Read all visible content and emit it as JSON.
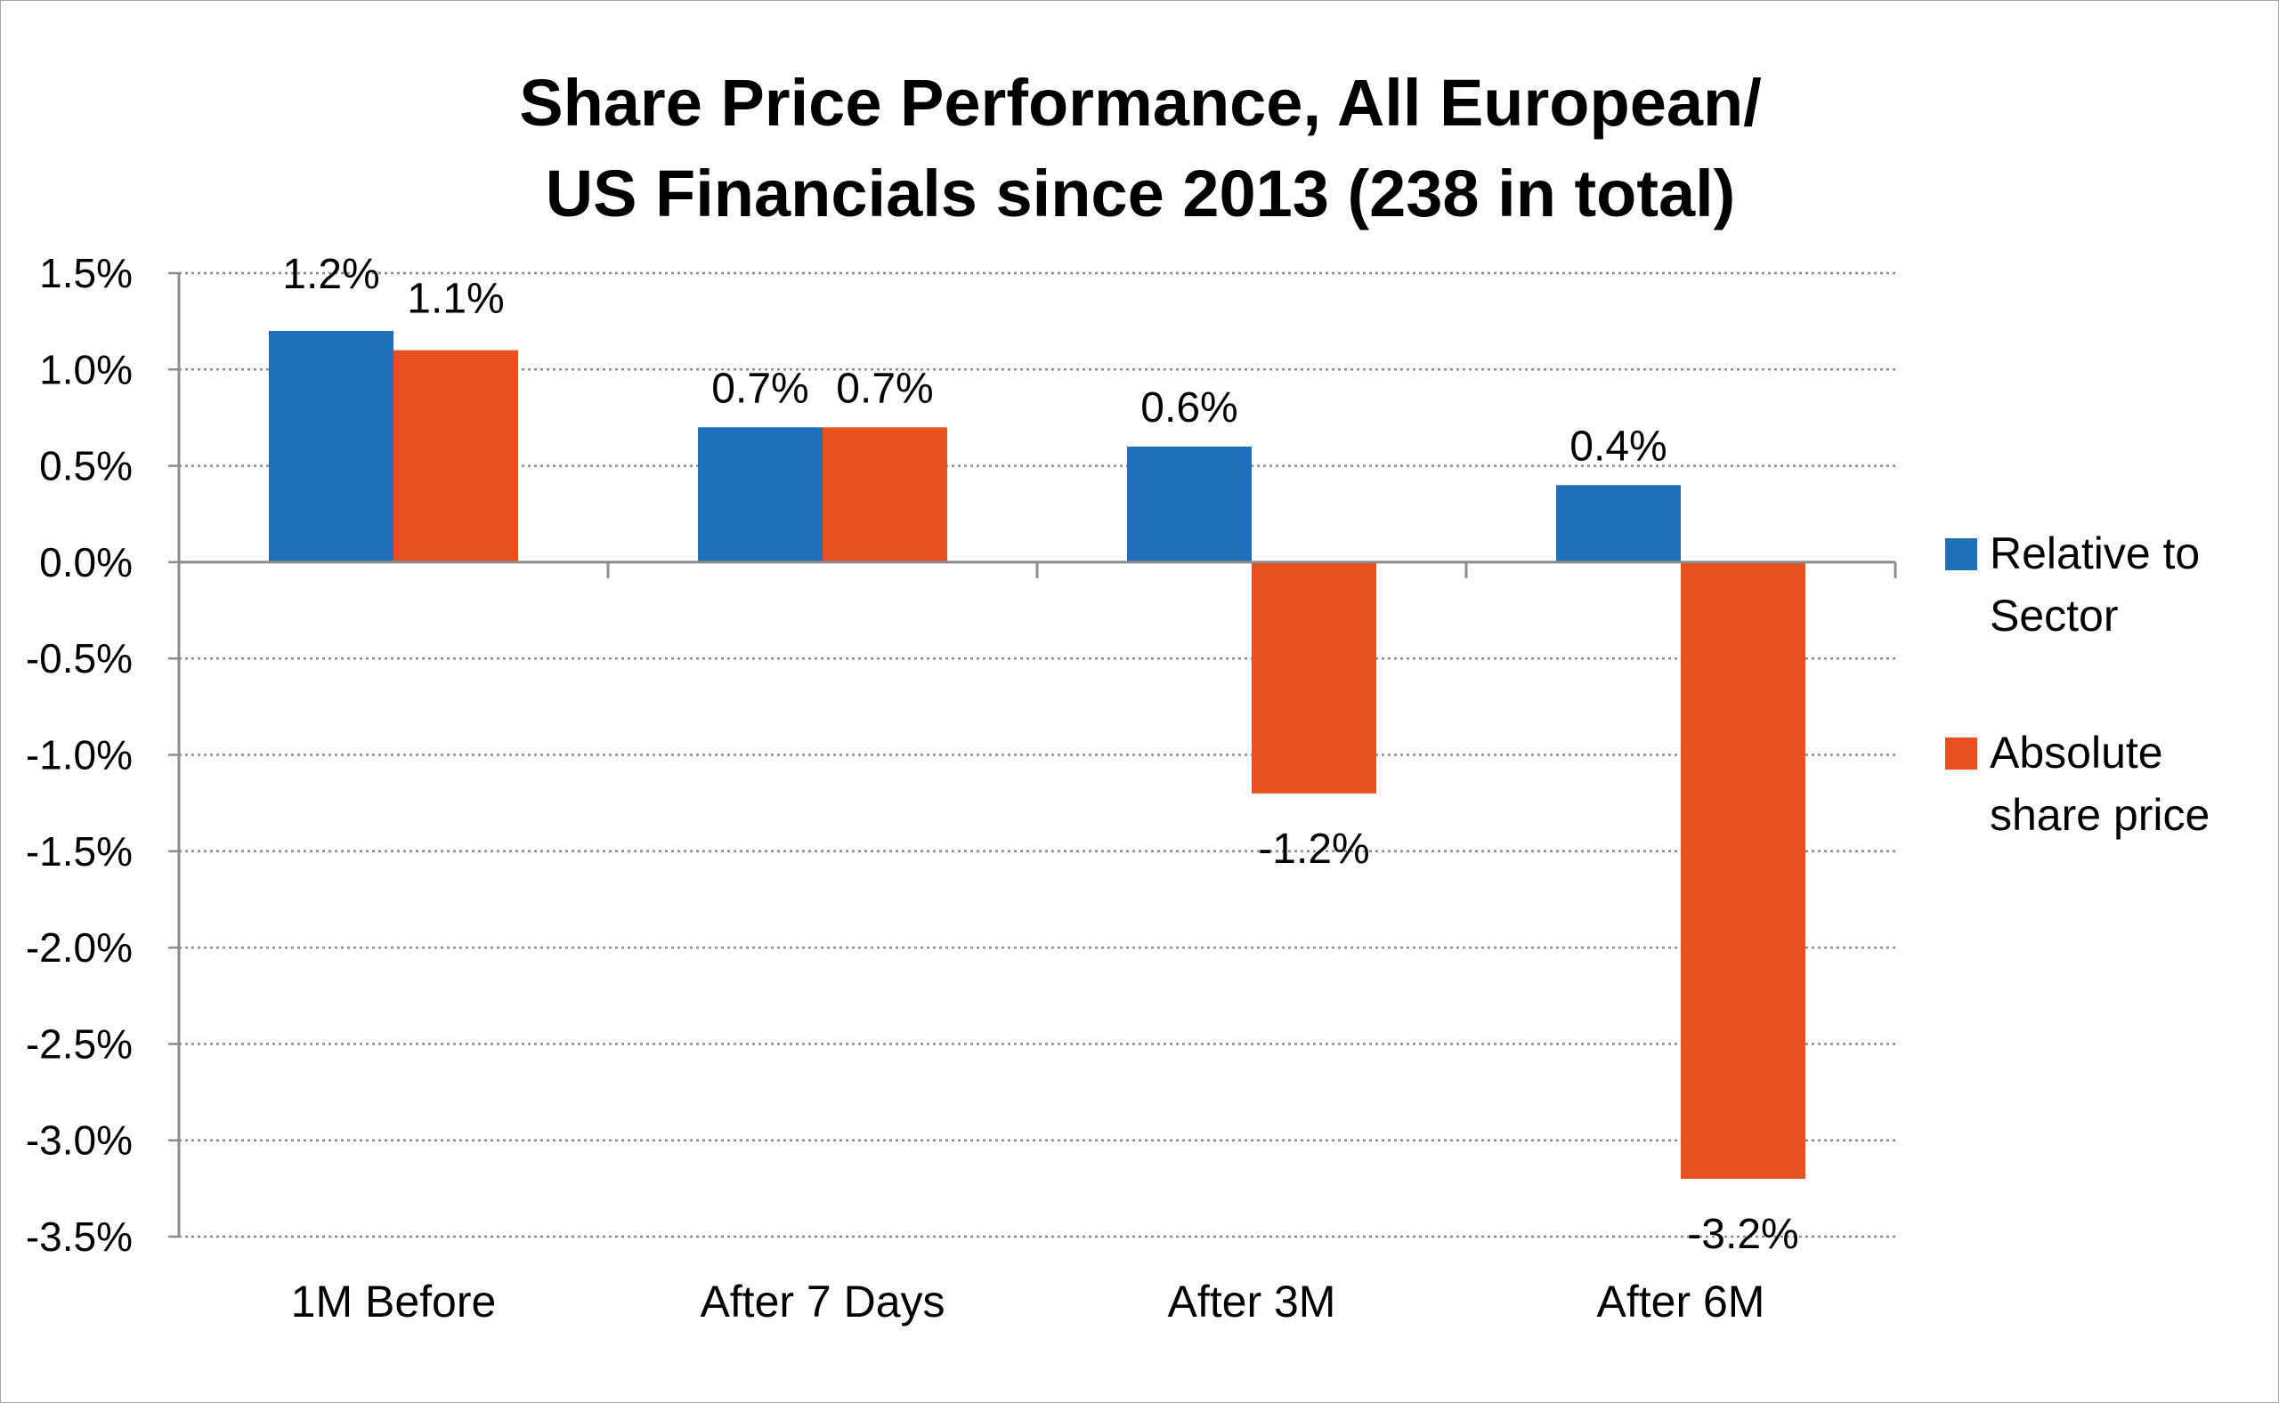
{
  "chart_data": {
    "type": "bar",
    "title_lines": [
      "Share Price Performance, All European/",
      "US Financials since 2013 (238 in total)"
    ],
    "categories": [
      "1M Before",
      "After 7 Days",
      "After 3M",
      "After 6M"
    ],
    "series": [
      {
        "name_lines": [
          "Relative to",
          "Sector"
        ],
        "values": [
          1.2,
          0.7,
          0.6,
          0.4
        ],
        "labels": [
          "1.2%",
          "0.7%",
          "0.6%",
          "0.4%"
        ],
        "color": "#1f6fba"
      },
      {
        "name_lines": [
          "Absolute",
          "share price"
        ],
        "values": [
          1.1,
          0.7,
          -1.2,
          -3.2
        ],
        "labels": [
          "1.1%",
          "0.7%",
          "-1.2%",
          "-3.2%"
        ],
        "color": "#e8511e"
      }
    ],
    "ylim": [
      -3.5,
      1.5
    ],
    "yticks": [
      1.5,
      1.0,
      0.5,
      0.0,
      -0.5,
      -1.0,
      -1.5,
      -2.0,
      -2.5,
      -3.0,
      -3.5
    ],
    "ytick_labels": [
      "1.5%",
      "1.0%",
      "0.5%",
      "0.0%",
      "-0.5%",
      "-1.0%",
      "-1.5%",
      "-2.0%",
      "-2.5%",
      "-3.0%",
      "-3.5%"
    ],
    "grid": true,
    "legend_position": "right"
  }
}
